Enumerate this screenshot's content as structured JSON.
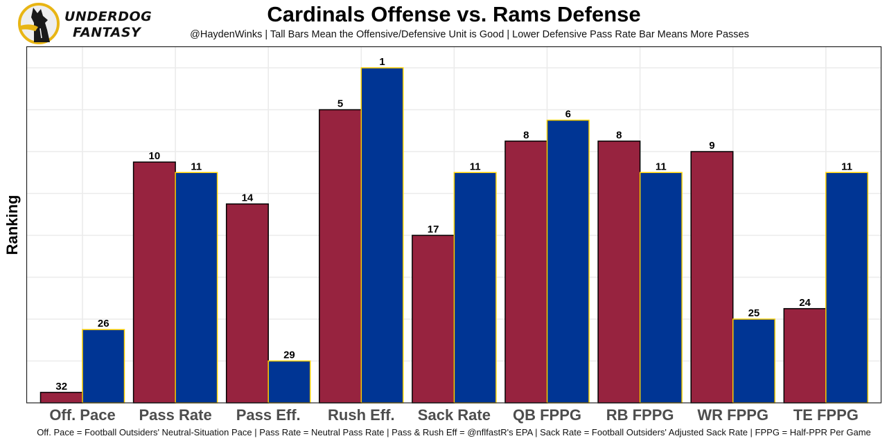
{
  "brand": {
    "line1": "UNDERDOG",
    "line2": "FANTASY",
    "logo_icon": "dog-silhouette-icon"
  },
  "chart_data": {
    "type": "bar",
    "title": "Cardinals Offense vs. Rams Defense",
    "subtitle": "@HaydenWinks | Tall Bars Mean the Offensive/Defensive Unit is Good | Lower Defensive Pass Rate Bar Means More Passes",
    "xlabel": "",
    "ylabel": "Ranking",
    "caption": "Off. Pace = Football Outsiders' Neutral-Situation Pace | Pass Rate = Neutral Pass Rate | Pass & Rush Eff = @nflfastR's EPA | Sack Rate = Football Outsiders' Adjusted Sack Rate | FPPG = Half-PPR Per Game",
    "categories": [
      "Off. Pace",
      "Pass Rate",
      "Pass Eff.",
      "Rush Eff.",
      "Sack Rate",
      "QB FPPG",
      "RB FPPG",
      "WR FPPG",
      "TE FPPG"
    ],
    "series": [
      {
        "name": "Cardinals Offense",
        "values": [
          32,
          10,
          14,
          5,
          17,
          8,
          8,
          9,
          24
        ],
        "color": "#97233F",
        "border": "#000000"
      },
      {
        "name": "Rams Defense",
        "values": [
          26,
          11,
          29,
          1,
          11,
          6,
          11,
          25,
          11
        ],
        "color": "#003594",
        "border": "#FFD100"
      }
    ],
    "value_encoding": "bar height = 33 - rank (rank 1 tallest)",
    "y_range_ranks": [
      33,
      1
    ],
    "y_tick_labels": [],
    "grid": true,
    "legend": "none"
  }
}
